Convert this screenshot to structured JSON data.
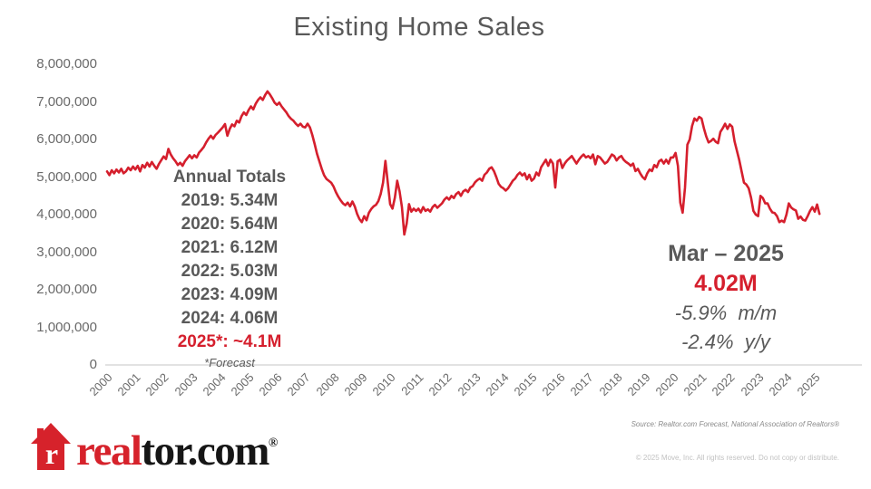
{
  "title": "Existing Home Sales",
  "chart_data": {
    "type": "line",
    "title": "Existing Home Sales",
    "series_name": "Existing home sales, monthly (seasonally adjusted annual rate)",
    "unit": "millions of homes",
    "frequency": "monthly",
    "x_start_year": 2000,
    "x_start_month": 1,
    "x_end_label": "Mar 2025",
    "grid": false,
    "line_color": "#d51f2d",
    "axis_color": "#d9d9d9",
    "ylim": [
      0,
      8000000
    ],
    "y_tick_labels": [
      "8,000,000",
      "7,000,000",
      "6,000,000",
      "5,000,000",
      "4,000,000",
      "3,000,000",
      "2,000,000",
      "1,000,000",
      "0"
    ],
    "x_tick_labels": [
      "2000",
      "2001",
      "2002",
      "2003",
      "2004",
      "2005",
      "2006",
      "2007",
      "2008",
      "2009",
      "2010",
      "2011",
      "2012",
      "2013",
      "2014",
      "2015",
      "2016",
      "2017",
      "2018",
      "2019",
      "2020",
      "2021",
      "2022",
      "2023",
      "2024",
      "2025"
    ],
    "values_millions": [
      5.15,
      5.05,
      5.18,
      5.1,
      5.2,
      5.12,
      5.22,
      5.1,
      5.15,
      5.25,
      5.18,
      5.28,
      5.2,
      5.3,
      5.15,
      5.32,
      5.25,
      5.38,
      5.28,
      5.4,
      5.3,
      5.22,
      5.35,
      5.45,
      5.55,
      5.48,
      5.75,
      5.6,
      5.5,
      5.42,
      5.32,
      5.38,
      5.3,
      5.42,
      5.5,
      5.58,
      5.5,
      5.58,
      5.52,
      5.65,
      5.72,
      5.8,
      5.92,
      6.02,
      6.1,
      6.02,
      6.12,
      6.18,
      6.25,
      6.32,
      6.41,
      6.1,
      6.28,
      6.4,
      6.35,
      6.5,
      6.45,
      6.62,
      6.72,
      6.65,
      6.78,
      6.88,
      6.8,
      6.95,
      7.05,
      7.12,
      7.05,
      7.18,
      7.28,
      7.2,
      7.1,
      6.98,
      6.92,
      6.98,
      6.88,
      6.8,
      6.72,
      6.62,
      6.55,
      6.5,
      6.42,
      6.36,
      6.42,
      6.34,
      6.32,
      6.42,
      6.32,
      6.12,
      5.88,
      5.62,
      5.42,
      5.22,
      5.05,
      4.95,
      4.9,
      4.85,
      4.75,
      4.6,
      4.48,
      4.38,
      4.3,
      4.25,
      4.32,
      4.22,
      4.35,
      4.22,
      4.02,
      3.88,
      3.8,
      3.96,
      3.85,
      4.05,
      4.15,
      4.22,
      4.26,
      4.36,
      4.55,
      4.85,
      5.43,
      4.85,
      4.28,
      4.16,
      4.45,
      4.9,
      4.62,
      4.2,
      3.47,
      3.76,
      4.28,
      4.08,
      4.16,
      4.1,
      4.16,
      4.06,
      4.2,
      4.1,
      4.14,
      4.08,
      4.2,
      4.26,
      4.18,
      4.24,
      4.3,
      4.4,
      4.46,
      4.4,
      4.5,
      4.44,
      4.55,
      4.6,
      4.5,
      4.62,
      4.66,
      4.6,
      4.72,
      4.76,
      4.86,
      4.92,
      4.96,
      4.9,
      5.06,
      5.12,
      5.22,
      5.26,
      5.16,
      5.0,
      4.82,
      4.74,
      4.7,
      4.64,
      4.7,
      4.8,
      4.9,
      4.96,
      5.06,
      5.12,
      5.04,
      5.1,
      4.94,
      5.06,
      4.9,
      4.96,
      5.12,
      5.04,
      5.26,
      5.36,
      5.46,
      5.3,
      5.46,
      5.36,
      4.72,
      5.42,
      5.46,
      5.24,
      5.36,
      5.44,
      5.5,
      5.56,
      5.46,
      5.36,
      5.46,
      5.54,
      5.6,
      5.52,
      5.56,
      5.5,
      5.6,
      5.34,
      5.56,
      5.52,
      5.44,
      5.36,
      5.4,
      5.5,
      5.6,
      5.56,
      5.44,
      5.52,
      5.56,
      5.46,
      5.4,
      5.36,
      5.3,
      5.36,
      5.16,
      5.22,
      5.1,
      5.0,
      4.94,
      5.1,
      5.2,
      5.16,
      5.32,
      5.26,
      5.42,
      5.46,
      5.36,
      5.46,
      5.36,
      5.52,
      5.52,
      5.64,
      5.3,
      4.32,
      4.05,
      4.72,
      5.86,
      6.0,
      6.36,
      6.56,
      6.5,
      6.6,
      6.56,
      6.3,
      6.08,
      5.92,
      5.96,
      6.02,
      5.94,
      5.9,
      6.2,
      6.3,
      6.42,
      6.28,
      6.4,
      6.34,
      5.95,
      5.7,
      5.45,
      5.15,
      4.85,
      4.8,
      4.7,
      4.45,
      4.1,
      4.0,
      3.96,
      4.5,
      4.44,
      4.3,
      4.3,
      4.16,
      4.06,
      4.04,
      3.96,
      3.8,
      3.84,
      3.8,
      4.0,
      4.3,
      4.19,
      4.14,
      4.11,
      3.89,
      3.95,
      3.86,
      3.84,
      3.96,
      4.1,
      4.2,
      4.08,
      4.27,
      4.02
    ]
  },
  "annual_totals": {
    "heading": "Annual Totals",
    "rows": [
      {
        "year": "2019",
        "value": "5.34M"
      },
      {
        "year": "2020",
        "value": "5.64M"
      },
      {
        "year": "2021",
        "value": "6.12M"
      },
      {
        "year": "2022",
        "value": "5.03M"
      },
      {
        "year": "2023",
        "value": "4.09M"
      },
      {
        "year": "2024",
        "value": "4.06M"
      }
    ],
    "forecast_row": {
      "year": "2025*",
      "value": "~4.1M"
    },
    "forecast_note": "*Forecast",
    "text_color": "#595959",
    "forecast_color": "#d51f2d"
  },
  "latest": {
    "period": "Mar – 2025",
    "value": "4.02M",
    "mom": "-5.9%  m/m",
    "yoy": "-2.4%  y/y"
  },
  "footer": {
    "source": "Source: Realtor.com Forecast, National Association of Realtors®",
    "copyright": "© 2025 Move, Inc. All rights reserved. Do not copy or distribute."
  },
  "logo": {
    "icon": "realtor-house-icon",
    "icon_letter": "r",
    "text_red": "real",
    "text_black": "tor.com",
    "registered": "®",
    "brand_red": "#d6222b"
  }
}
